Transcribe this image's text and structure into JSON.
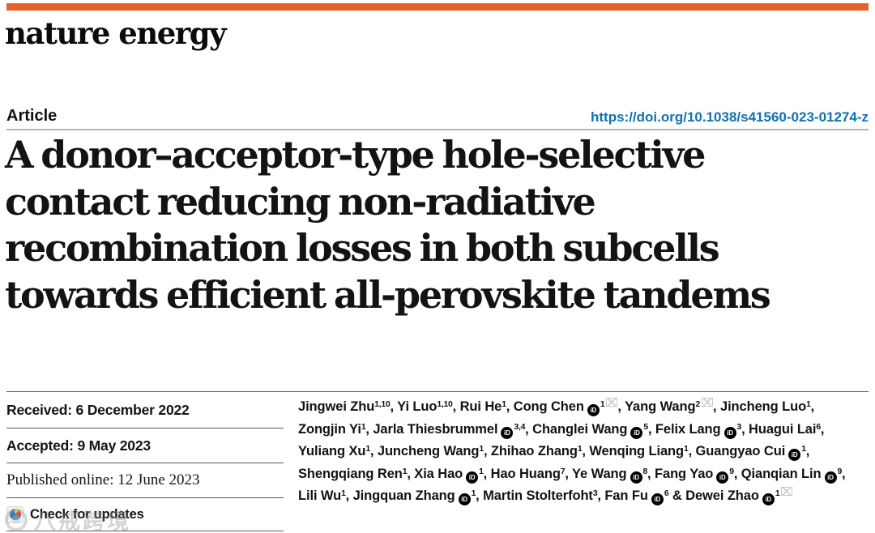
{
  "brand": {
    "journal": "nature energy",
    "accent_color": "#e8612c"
  },
  "header": {
    "article_label": "Article",
    "doi": "https://doi.org/10.1038/s41560-023-01274-z",
    "link_color": "#0f72b2"
  },
  "title": {
    "full": "A donor–acceptor-type hole-selective contact reducing non-radiative recombination losses in both subcells towards efficient all-perovskite tandems",
    "lines": [
      "A donor–acceptor-type hole-selective",
      "contact reducing non-radiative",
      "recombination losses in both subcells",
      "towards efficient all-perovskite tandems"
    ]
  },
  "meta": {
    "received": "Received: 6 December 2022",
    "accepted": "Accepted: 9 May 2023",
    "published": "Published online: 12 June 2023",
    "check_updates": "Check for updates"
  },
  "authors": [
    {
      "name": "Jingwei Zhu",
      "sup": "1,10"
    },
    {
      "name": "Yi Luo",
      "sup": "1,10"
    },
    {
      "name": "Rui He",
      "sup": "1"
    },
    {
      "name": "Cong Chen",
      "sup": "1",
      "orcid": true,
      "mail": true
    },
    {
      "name": "Yang Wang",
      "sup": "2",
      "mail": true
    },
    {
      "name": "Jincheng Luo",
      "sup": "1"
    },
    {
      "name": "Zongjin Yi",
      "sup": "1"
    },
    {
      "name": "Jarla Thiesbrummel",
      "sup": "3,4",
      "orcid": true
    },
    {
      "name": "Changlei Wang",
      "sup": "5",
      "orcid": true
    },
    {
      "name": "Felix Lang",
      "sup": "3",
      "orcid": true
    },
    {
      "name": "Huagui Lai",
      "sup": "6"
    },
    {
      "name": "Yuliang Xu",
      "sup": "1"
    },
    {
      "name": "Juncheng Wang",
      "sup": "1"
    },
    {
      "name": "Zhihao Zhang",
      "sup": "1"
    },
    {
      "name": "Wenqing Liang",
      "sup": "1"
    },
    {
      "name": "Guangyao Cui",
      "sup": "1",
      "orcid": true
    },
    {
      "name": "Shengqiang Ren",
      "sup": "1"
    },
    {
      "name": "Xia Hao",
      "sup": "1",
      "orcid": true
    },
    {
      "name": "Hao Huang",
      "sup": "7"
    },
    {
      "name": "Ye Wang",
      "sup": "8",
      "orcid": true
    },
    {
      "name": "Fang Yao",
      "sup": "9",
      "orcid": true
    },
    {
      "name": "Qianqian Lin",
      "sup": "9",
      "orcid": true
    },
    {
      "name": "Lili Wu",
      "sup": "1"
    },
    {
      "name": "Jingquan Zhang",
      "sup": "1",
      "orcid": true
    },
    {
      "name": "Martin Stolterfoht",
      "sup": "3"
    },
    {
      "name": "Fan Fu",
      "sup": "6",
      "orcid": true
    },
    {
      "name": "Dewei Zhao",
      "sup": "1",
      "orcid": true,
      "mail": true
    }
  ],
  "icons": {
    "orcid_label": "iD",
    "crossmark": "crossmark-circle",
    "email": "envelope"
  },
  "watermark": {
    "text": "八戒跨境"
  }
}
